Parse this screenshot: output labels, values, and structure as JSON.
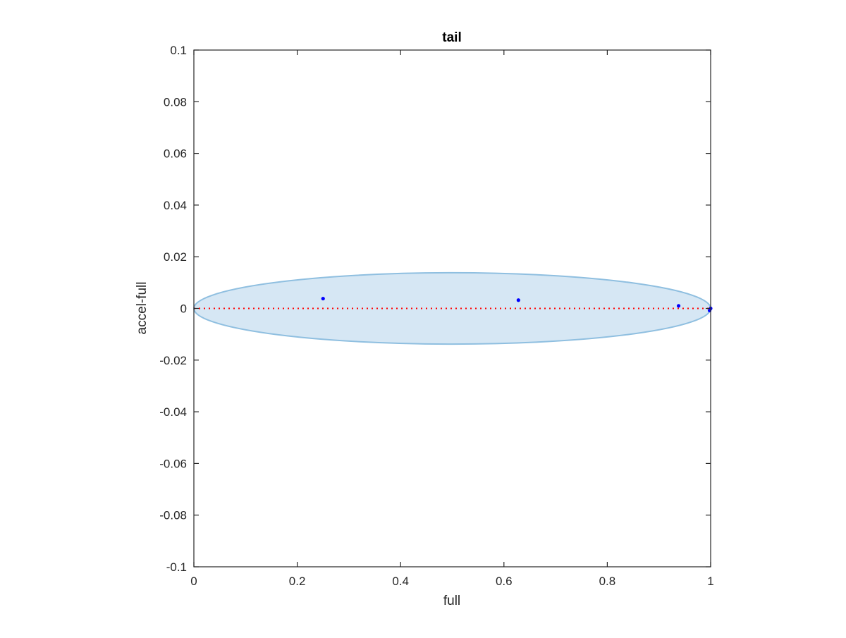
{
  "chart_data": {
    "type": "scatter",
    "title": "tail",
    "xlabel": "full",
    "ylabel": "accel-full",
    "xlim": [
      0,
      1
    ],
    "ylim": [
      -0.1,
      0.1
    ],
    "xticks": [
      0,
      0.2,
      0.4,
      0.6,
      0.8,
      1
    ],
    "xtick_labels": [
      "0",
      "0.2",
      "0.4",
      "0.6",
      "0.8",
      "1"
    ],
    "yticks": [
      -0.1,
      -0.08,
      -0.06,
      -0.04,
      -0.02,
      0,
      0.02,
      0.04,
      0.06,
      0.08,
      0.1
    ],
    "ytick_labels": [
      "-0.1",
      "-0.08",
      "-0.06",
      "-0.04",
      "-0.02",
      "0",
      "0.02",
      "0.04",
      "0.06",
      "0.08",
      "0.1"
    ],
    "grid": false,
    "box": true,
    "points": [
      {
        "x": 0.25,
        "y": 0.0038
      },
      {
        "x": 0.628,
        "y": 0.0032
      },
      {
        "x": 0.938,
        "y": 0.001
      },
      {
        "x": 0.998,
        "y": -0.0008
      },
      {
        "x": 1.0,
        "y": 0.0
      }
    ],
    "ellipse": {
      "center": [
        0.5,
        0.0
      ],
      "x_range": [
        0,
        1
      ],
      "y_range": [
        -0.0138,
        0.0138
      ]
    },
    "reference_line": {
      "y": 0,
      "x_range": [
        0,
        1
      ],
      "style": "dotted"
    },
    "colors": {
      "points": "#0000ff",
      "ellipse_fill": "#d6e7f4",
      "ellipse_edge": "#8fbfe0",
      "reference_line": "#ff0000",
      "axes": "#262626"
    }
  }
}
